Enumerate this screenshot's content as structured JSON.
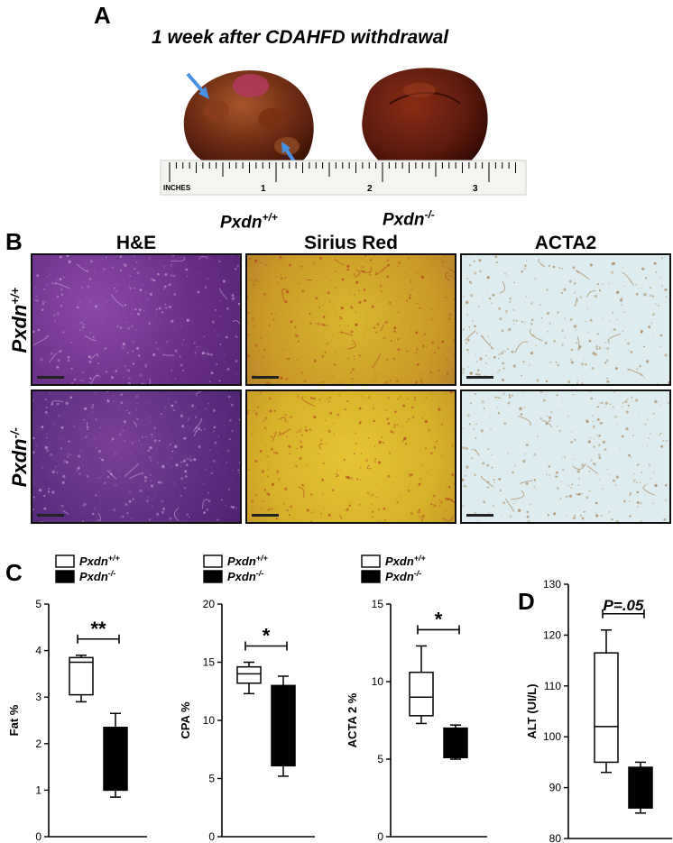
{
  "panel_a": {
    "letter": "A",
    "title": "1 week after  CDAHFD withdrawal",
    "ruler": {
      "unit": "INCHES",
      "marks": [
        "1",
        "2",
        "3"
      ]
    },
    "genotype_wt": {
      "base": "Pxdn",
      "sup": "+/+"
    },
    "genotype_ko": {
      "base": "Pxdn",
      "sup": "-/-"
    },
    "colors": {
      "liver_wt": "#6b2a12",
      "liver_ko": "#5a1a0c",
      "arrow": "#4a90e2"
    }
  },
  "panel_b": {
    "letter": "B",
    "stains": [
      "H&E",
      "Sirius Red",
      "ACTA2"
    ],
    "rows": [
      {
        "base": "Pxdn",
        "sup": "+/+"
      },
      {
        "base": "Pxdn",
        "sup": "-/-"
      }
    ],
    "colors": {
      "he": "#7a3f95",
      "sirius": "#d8b830",
      "acta2": "#dcecef"
    }
  },
  "panel_c": {
    "letter": "C"
  },
  "panel_d": {
    "letter": "D"
  },
  "legend": {
    "wt": {
      "base": "Pxdn",
      "sup": "+/+"
    },
    "ko": {
      "base": "Pxdn",
      "sup": "-/-"
    }
  },
  "chart_data": [
    {
      "type": "box",
      "ylabel": "Fat %",
      "ylim": [
        0,
        5
      ],
      "yticks": [
        "0",
        "1",
        "2",
        "3",
        "4",
        "5"
      ],
      "legend": true,
      "significance": "**",
      "series": [
        {
          "name": "Pxdn+/+",
          "fill": "#ffffff",
          "min": 2.9,
          "q1": 3.05,
          "median": 3.75,
          "q3": 3.85,
          "max": 3.9
        },
        {
          "name": "Pxdn-/-",
          "fill": "#000000",
          "min": 0.85,
          "q1": 1.0,
          "median": 1.6,
          "q3": 2.35,
          "max": 2.65
        }
      ]
    },
    {
      "type": "box",
      "ylabel": "CPA %",
      "ylim": [
        0,
        20
      ],
      "yticks": [
        "0",
        "5",
        "10",
        "15",
        "20"
      ],
      "legend": true,
      "significance": "*",
      "series": [
        {
          "name": "Pxdn+/+",
          "fill": "#ffffff",
          "min": 12.3,
          "q1": 13.2,
          "median": 14.0,
          "q3": 14.6,
          "max": 15.0
        },
        {
          "name": "Pxdn-/-",
          "fill": "#000000",
          "min": 5.2,
          "q1": 6.1,
          "median": 10.0,
          "q3": 13.0,
          "max": 13.8
        }
      ]
    },
    {
      "type": "box",
      "ylabel": "ACTA 2 %",
      "ylim": [
        0,
        15
      ],
      "yticks": [
        "0",
        "5",
        "10",
        "15"
      ],
      "legend": true,
      "significance": "*",
      "series": [
        {
          "name": "Pxdn+/+",
          "fill": "#ffffff",
          "min": 7.3,
          "q1": 7.8,
          "median": 9.0,
          "q3": 10.6,
          "max": 12.3
        },
        {
          "name": "Pxdn-/-",
          "fill": "#000000",
          "min": 5.0,
          "q1": 5.1,
          "median": 5.8,
          "q3": 7.0,
          "max": 7.2
        }
      ]
    },
    {
      "type": "box",
      "ylabel": "ALT (UI/L)",
      "ylim": [
        80,
        130
      ],
      "yticks": [
        "80",
        "90",
        "100",
        "110",
        "120",
        "130"
      ],
      "legend": false,
      "significance": "P=.05",
      "series": [
        {
          "name": "Pxdn+/+",
          "fill": "#ffffff",
          "min": 93,
          "q1": 95,
          "median": 102,
          "q3": 116.5,
          "max": 121
        },
        {
          "name": "Pxdn-/-",
          "fill": "#000000",
          "min": 85,
          "q1": 86,
          "median": 90,
          "q3": 94,
          "max": 95
        }
      ]
    }
  ]
}
